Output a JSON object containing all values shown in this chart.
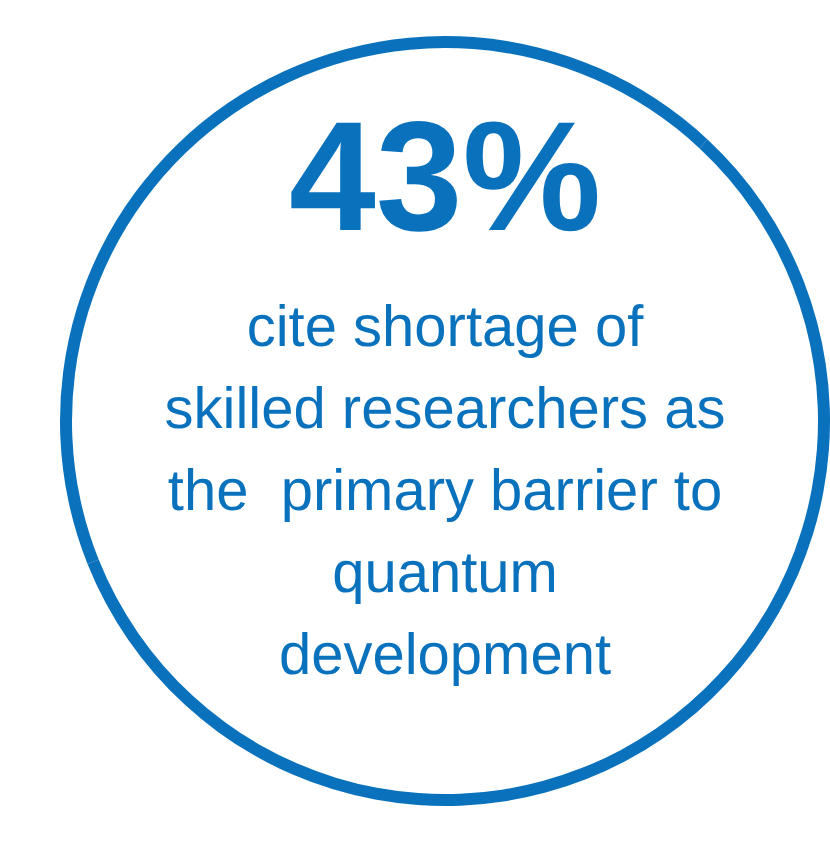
{
  "chart_data": {
    "type": "donut",
    "title": "43%",
    "categories": [
      null,
      null
    ],
    "values": [
      43,
      57
    ],
    "colors": [
      "#0a72bd",
      "#0a72bd"
    ],
    "annotations": [
      "cite shortage of",
      "skilled researchers as",
      "the  primary barrier to",
      "quantum",
      "development"
    ]
  }
}
